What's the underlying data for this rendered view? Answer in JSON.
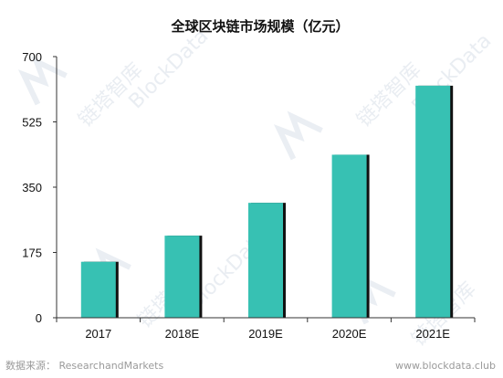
{
  "watermark": {
    "text_cn": "链塔智库",
    "text_en": "BlockData"
  },
  "chart_data": {
    "type": "bar",
    "title": "全球区块链市场规模（亿元）",
    "xlabel": "",
    "ylabel": "",
    "categories": [
      "2017",
      "2018E",
      "2019E",
      "2020E",
      "2021E"
    ],
    "values": [
      150,
      220,
      308,
      437,
      622
    ],
    "ylim": [
      0,
      700
    ],
    "yticks": [
      "0",
      "175",
      "350",
      "525",
      "700"
    ],
    "grid": false,
    "legend": "none",
    "colors": {
      "bar": "#37c1b3",
      "bar_shadow": "#111111",
      "axis": "#333333"
    }
  },
  "footer": {
    "source": "数据来源： ResearchandMarkets",
    "website": "www.blockdata.club"
  }
}
